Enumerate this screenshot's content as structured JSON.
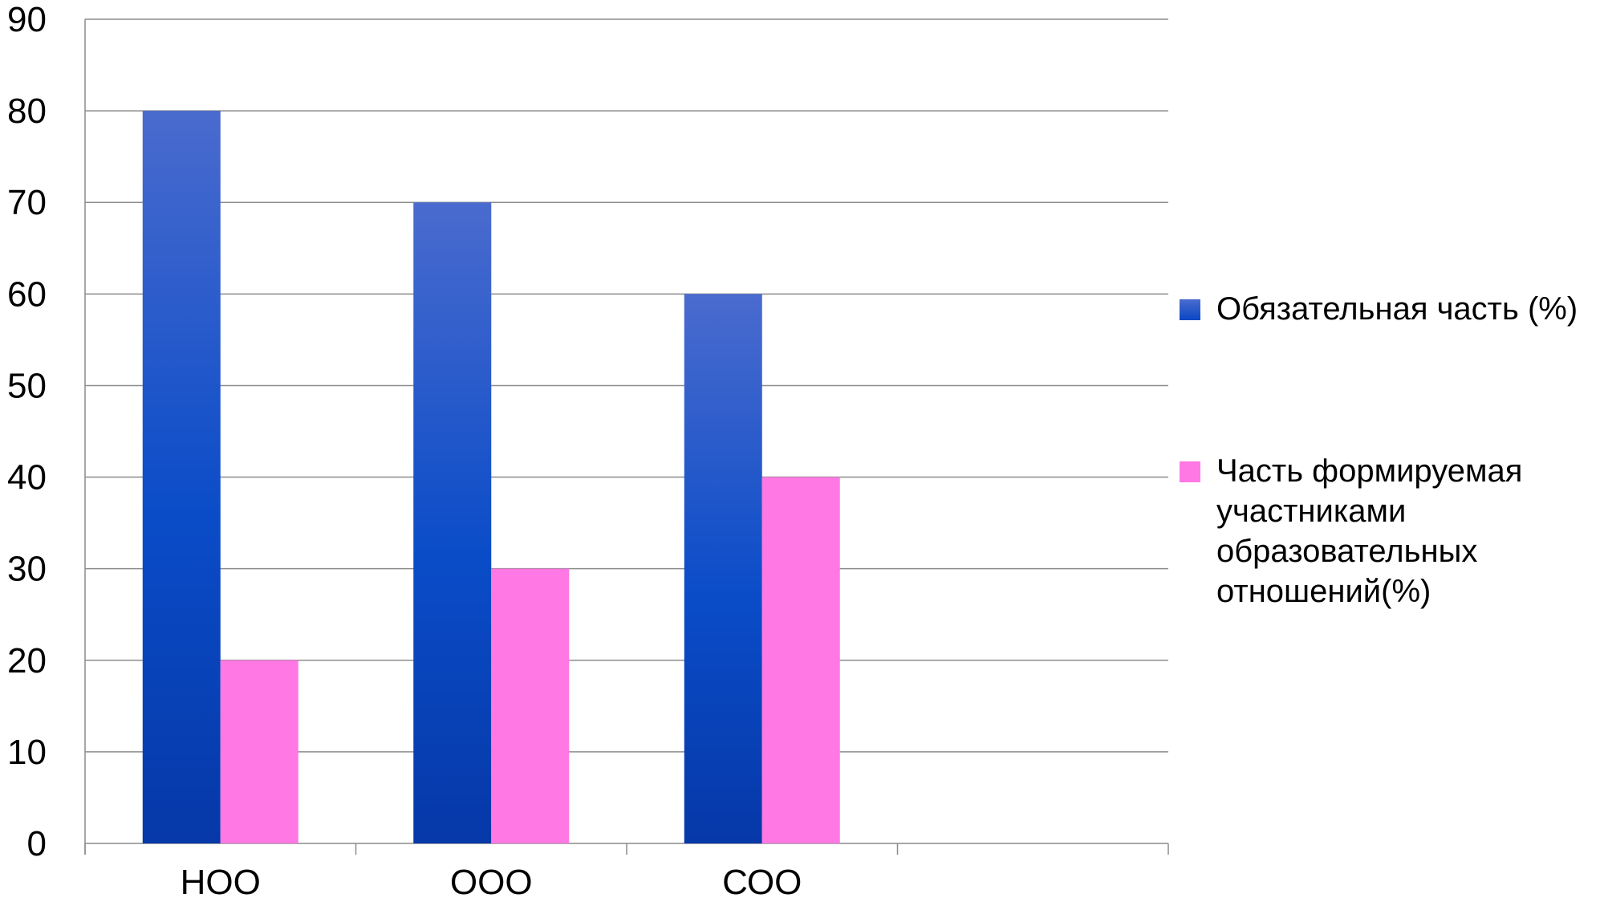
{
  "chart_data": {
    "type": "bar",
    "categories": [
      "НОО",
      "ООО",
      "СОО",
      ""
    ],
    "series": [
      {
        "name": "Обязательная часть (%)",
        "values": [
          80,
          70,
          60,
          null
        ],
        "color": "#0a47c4"
      },
      {
        "name": "Часть формируемая участниками образовательных отношений(%)",
        "values": [
          20,
          30,
          40,
          null
        ],
        "color": "#ff78e3"
      }
    ],
    "title": "",
    "xlabel": "",
    "ylabel": "",
    "ylim": [
      0,
      90
    ],
    "yticks": [
      0,
      10,
      20,
      30,
      40,
      50,
      60,
      70,
      80,
      90
    ],
    "grid": true,
    "legend_position": "right"
  }
}
